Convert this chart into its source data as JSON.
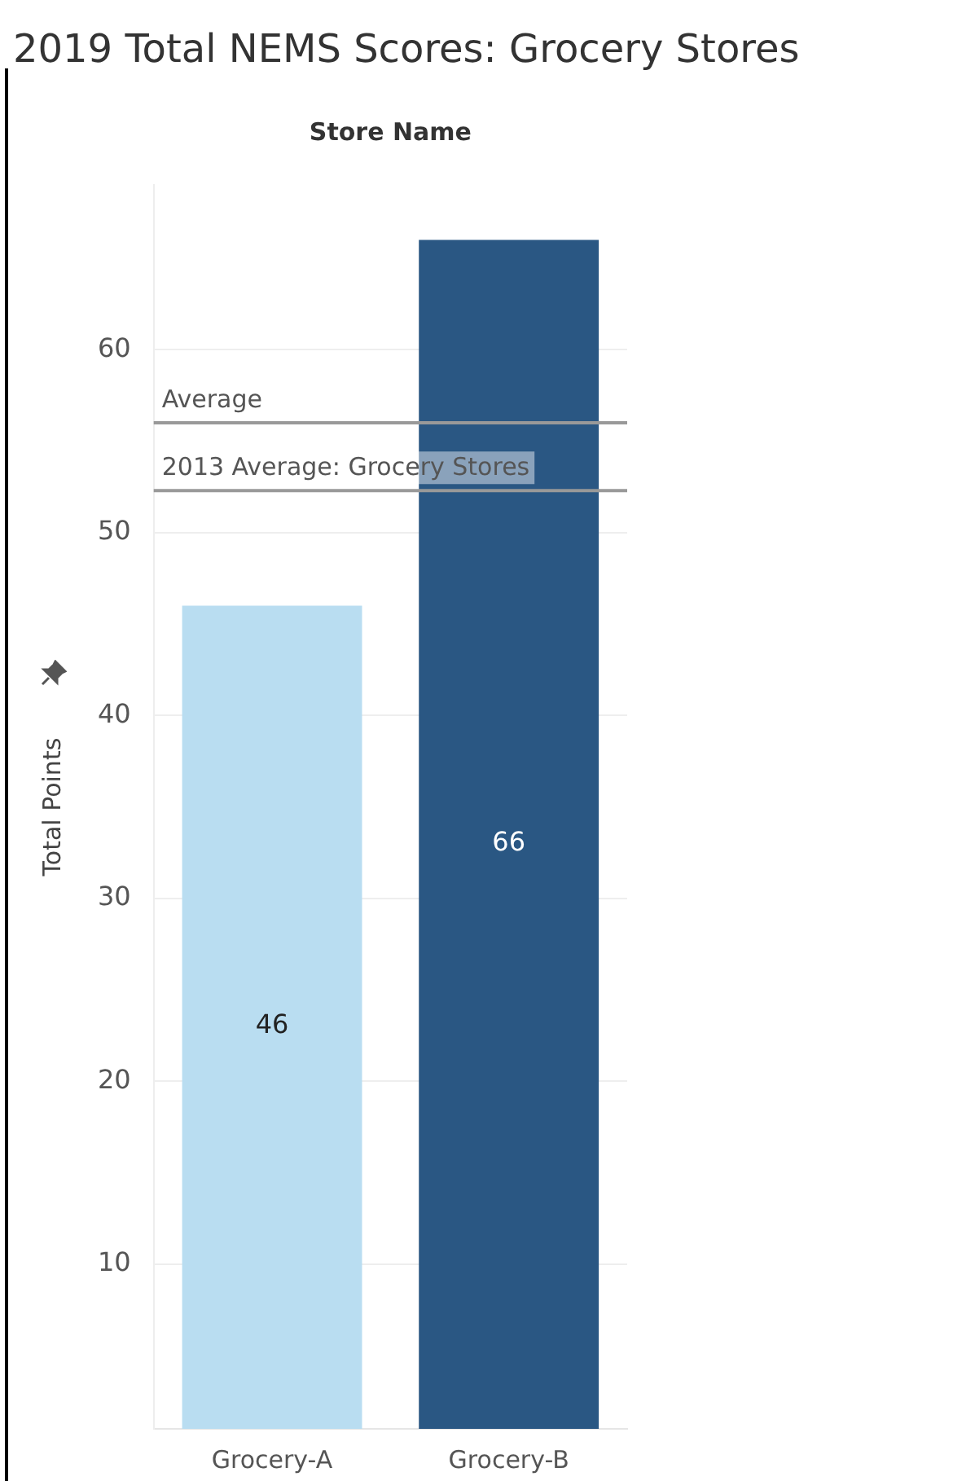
{
  "chart_data": {
    "type": "bar",
    "title": "2019 Total NEMS Scores: Grocery Stores",
    "xlabel": "Store Name",
    "ylabel": "Total Points",
    "categories": [
      "Grocery-A",
      "Grocery-B"
    ],
    "values": [
      46,
      66
    ],
    "colors": [
      "#b9ddf1",
      "#2a5783"
    ],
    "ylim": [
      1,
      69
    ],
    "yticks": [
      10,
      20,
      30,
      40,
      50,
      60
    ],
    "grid": "y",
    "data_labels": true,
    "legend": false,
    "ref_lines": [
      {
        "axis": "y",
        "value": 56,
        "label": "Average",
        "color": "#999999"
      },
      {
        "axis": "y",
        "value": 52.3,
        "label": "2013 Average: Grocery Stores",
        "color": "#999999"
      }
    ]
  }
}
